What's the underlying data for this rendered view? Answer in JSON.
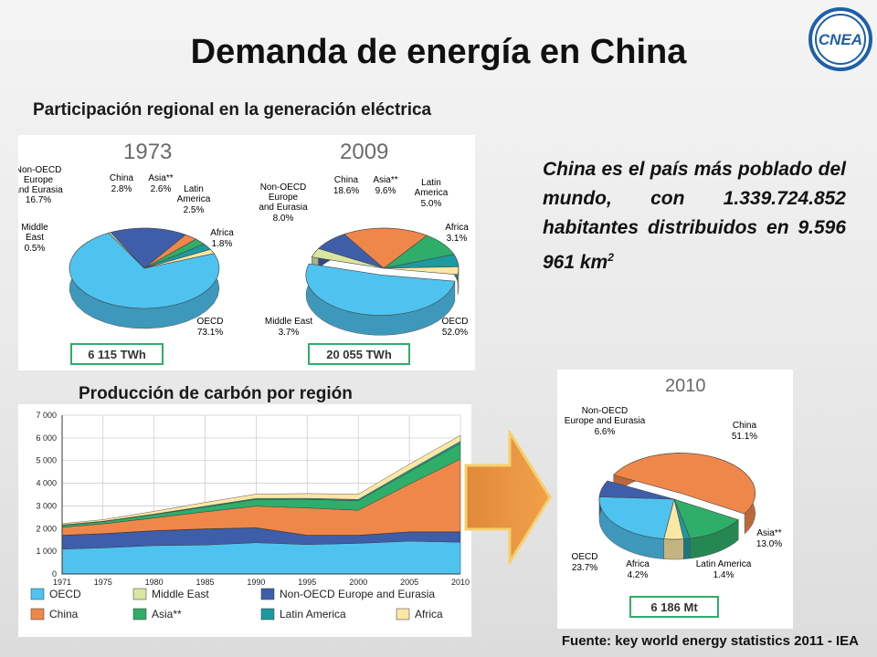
{
  "slide": {
    "title": "Demanda de energía en China",
    "subtitle_generation": "Participación regional en la generación eléctrica",
    "subtitle_coal": "Producción de carbón por región",
    "description_main": "China es el país más poblado del mundo, con 1.339.724.852 habitantes distribuidos en 9.596 961 km",
    "description_sup": "2",
    "source": "Fuente: key world energy statistics 2011 - IEA",
    "logo_text": "CNEA"
  },
  "chart_data": [
    {
      "type": "pie",
      "title": "1973",
      "total_label": "6 115 TWh",
      "slices": [
        {
          "name": "OECD",
          "value": 73.1,
          "label": "73.1%",
          "color": "#4fc3f0"
        },
        {
          "name": "Middle East",
          "value": 0.5,
          "label": "0.5%",
          "color": "#d8e6a0"
        },
        {
          "name": "Non-OECD Europe and Eurasia",
          "value": 16.7,
          "label": "16.7%",
          "color": "#3f5eaa"
        },
        {
          "name": "China",
          "value": 2.8,
          "label": "2.8%",
          "color": "#f0874a"
        },
        {
          "name": "Asia**",
          "value": 2.6,
          "label": "2.6%",
          "color": "#2fae6a"
        },
        {
          "name": "Latin America",
          "value": 2.5,
          "label": "2.5%",
          "color": "#1c9aa0"
        },
        {
          "name": "Africa",
          "value": 1.8,
          "label": "1.8%",
          "color": "#fbe7a4"
        }
      ]
    },
    {
      "type": "pie",
      "title": "2009",
      "total_label": "20 055 TWh",
      "slices": [
        {
          "name": "OECD",
          "value": 52.0,
          "label": "52.0%",
          "color": "#4fc3f0"
        },
        {
          "name": "Middle East",
          "value": 3.7,
          "label": "3.7%",
          "color": "#d8e6a0"
        },
        {
          "name": "Non-OECD Europe and Eurasia",
          "value": 8.0,
          "label": "8.0%",
          "color": "#3f5eaa"
        },
        {
          "name": "China",
          "value": 18.6,
          "label": "18.6%",
          "color": "#f0874a"
        },
        {
          "name": "Asia**",
          "value": 9.6,
          "label": "9.6%",
          "color": "#2fae6a"
        },
        {
          "name": "Latin America",
          "value": 5.0,
          "label": "5.0%",
          "color": "#1c9aa0"
        },
        {
          "name": "Africa",
          "value": 3.1,
          "label": "3.1%",
          "color": "#fbe7a4"
        }
      ]
    },
    {
      "type": "area",
      "title": "",
      "xlabel": "",
      "ylabel": "",
      "xlim": [
        1971,
        2010
      ],
      "ylim": [
        0,
        7000
      ],
      "x_ticks": [
        "1971",
        "1975",
        "1980",
        "1985",
        "1990",
        "1995",
        "2000",
        "2005",
        "2010"
      ],
      "y_ticks": [
        "0",
        "1 000",
        "2 000",
        "3 000",
        "4 000",
        "5 000",
        "6 000",
        "7 000"
      ],
      "years": [
        1971,
        1975,
        1980,
        1985,
        1990,
        1995,
        2000,
        2005,
        2010
      ],
      "grid": true,
      "legend_position": "bottom",
      "series": [
        {
          "name": "OECD",
          "color": "#4fc3f0",
          "values": [
            1100,
            1150,
            1250,
            1280,
            1380,
            1300,
            1350,
            1450,
            1400
          ]
        },
        {
          "name": "Non-OECD Europe and Eurasia",
          "color": "#3f5eaa",
          "values": [
            600,
            620,
            650,
            700,
            650,
            400,
            350,
            400,
            450
          ]
        },
        {
          "name": "Middle East",
          "color": "#d8e6a0",
          "values": [
            10,
            10,
            10,
            10,
            10,
            10,
            10,
            10,
            10
          ]
        },
        {
          "name": "China",
          "color": "#f0874a",
          "values": [
            350,
            430,
            560,
            750,
            950,
            1200,
            1100,
            2100,
            3200
          ]
        },
        {
          "name": "Asia**",
          "color": "#2fae6a",
          "values": [
            90,
            100,
            150,
            210,
            300,
            380,
            420,
            550,
            700
          ]
        },
        {
          "name": "Latin America",
          "color": "#1c9aa0",
          "values": [
            10,
            15,
            20,
            35,
            40,
            45,
            55,
            70,
            90
          ]
        },
        {
          "name": "Africa",
          "color": "#fbe7a4",
          "values": [
            60,
            70,
            120,
            170,
            190,
            210,
            230,
            260,
            260
          ]
        }
      ]
    },
    {
      "type": "pie",
      "title": "2010",
      "total_label": "6 186 Mt",
      "slices": [
        {
          "name": "China",
          "value": 51.1,
          "label": "51.1%",
          "color": "#f0874a"
        },
        {
          "name": "Asia**",
          "value": 13.0,
          "label": "13.0%",
          "color": "#2fae6a"
        },
        {
          "name": "Latin America",
          "value": 1.4,
          "label": "1.4%",
          "color": "#1c9aa0"
        },
        {
          "name": "Africa",
          "value": 4.2,
          "label": "4.2%",
          "color": "#fbe7a4"
        },
        {
          "name": "OECD",
          "value": 23.7,
          "label": "23.7%",
          "color": "#4fc3f0"
        },
        {
          "name": "Non-OECD Europe and Eurasia",
          "value": 6.6,
          "label": "6.6%",
          "color": "#3f5eaa"
        }
      ]
    }
  ]
}
